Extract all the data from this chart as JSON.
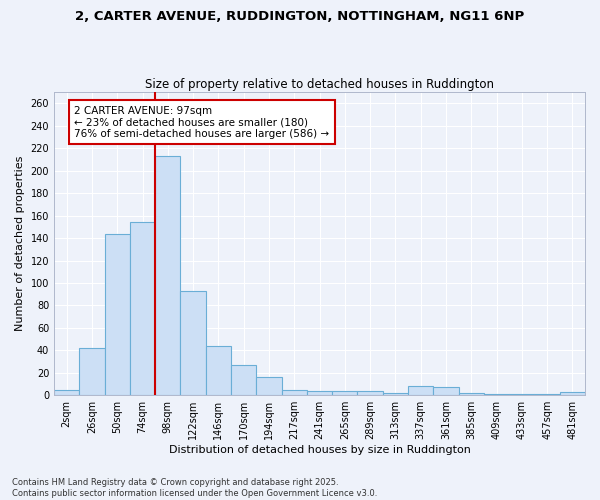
{
  "title_line1": "2, CARTER AVENUE, RUDDINGTON, NOTTINGHAM, NG11 6NP",
  "title_line2": "Size of property relative to detached houses in Ruddington",
  "xlabel": "Distribution of detached houses by size in Ruddington",
  "ylabel": "Number of detached properties",
  "categories": [
    "2sqm",
    "26sqm",
    "50sqm",
    "74sqm",
    "98sqm",
    "122sqm",
    "146sqm",
    "170sqm",
    "194sqm",
    "217sqm",
    "241sqm",
    "265sqm",
    "289sqm",
    "313sqm",
    "337sqm",
    "361sqm",
    "385sqm",
    "409sqm",
    "433sqm",
    "457sqm",
    "481sqm"
  ],
  "values": [
    5,
    42,
    144,
    154,
    213,
    93,
    44,
    27,
    16,
    5,
    4,
    4,
    4,
    2,
    8,
    7,
    2,
    1,
    1,
    1,
    3
  ],
  "bar_color": "#ccdff5",
  "bar_edge_color": "#6aaed6",
  "vline_index": 4,
  "vline_color": "#cc0000",
  "annotation_line1": "2 CARTER AVENUE: 97sqm",
  "annotation_line2": "← 23% of detached houses are smaller (180)",
  "annotation_line3": "76% of semi-detached houses are larger (586) →",
  "annotation_box_facecolor": "#ffffff",
  "annotation_box_edgecolor": "#cc0000",
  "ylim": [
    0,
    270
  ],
  "yticks": [
    0,
    20,
    40,
    60,
    80,
    100,
    120,
    140,
    160,
    180,
    200,
    220,
    240,
    260
  ],
  "footnote": "Contains HM Land Registry data © Crown copyright and database right 2025.\nContains public sector information licensed under the Open Government Licence v3.0.",
  "bg_color": "#eef2fa",
  "grid_color": "#ffffff",
  "title_fontsize": 9.5,
  "subtitle_fontsize": 8.5,
  "axis_label_fontsize": 8,
  "tick_fontsize": 7,
  "annotation_fontsize": 7.5,
  "footnote_fontsize": 6
}
